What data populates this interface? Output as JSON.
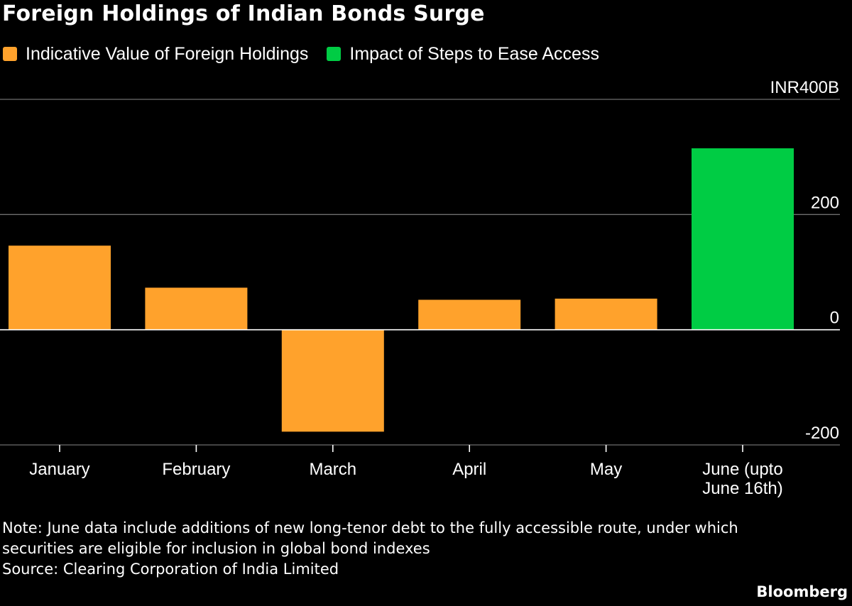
{
  "title": "Foreign Holdings of Indian Bonds Surge",
  "legend": [
    {
      "label": "Indicative Value of Foreign Holdings",
      "color": "#FFA22C"
    },
    {
      "label": "Impact of Steps to Ease Access",
      "color": "#00CC44"
    }
  ],
  "chart_data": {
    "type": "bar",
    "title": "Foreign Holdings of Indian Bonds Surge",
    "categories": [
      "January",
      "February",
      "March",
      "April",
      "May",
      "June (upto June 16th)"
    ],
    "category_lines": [
      [
        "January"
      ],
      [
        "February"
      ],
      [
        "March"
      ],
      [
        "April"
      ],
      [
        "May"
      ],
      [
        "June (upto",
        "June 16th)"
      ]
    ],
    "series": [
      {
        "name": "Indicative Value of Foreign Holdings",
        "color": "#FFA22C",
        "values": [
          146,
          73,
          -177,
          52,
          54,
          null
        ]
      },
      {
        "name": "Impact of Steps to Ease Access",
        "color": "#00CC44",
        "values": [
          null,
          null,
          null,
          null,
          null,
          315
        ]
      }
    ],
    "unit": "INR",
    "y_ticks": [
      {
        "value": 400,
        "label": "INR400B"
      },
      {
        "value": 200,
        "label": "200"
      },
      {
        "value": 0,
        "label": "0"
      },
      {
        "value": -200,
        "label": "-200"
      }
    ],
    "ylim": [
      -200,
      400
    ],
    "grid": true,
    "legend_position": "top-left",
    "xlabel": "",
    "ylabel": ""
  },
  "notes": {
    "note_line1": "Note: June data include additions of new long-tenor debt to the fully accessible route, under which",
    "note_line2": "securities are eligible for inclusion in global bond indexes",
    "source": "Source: Clearing Corporation of India Limited"
  },
  "brand": "Bloomberg"
}
